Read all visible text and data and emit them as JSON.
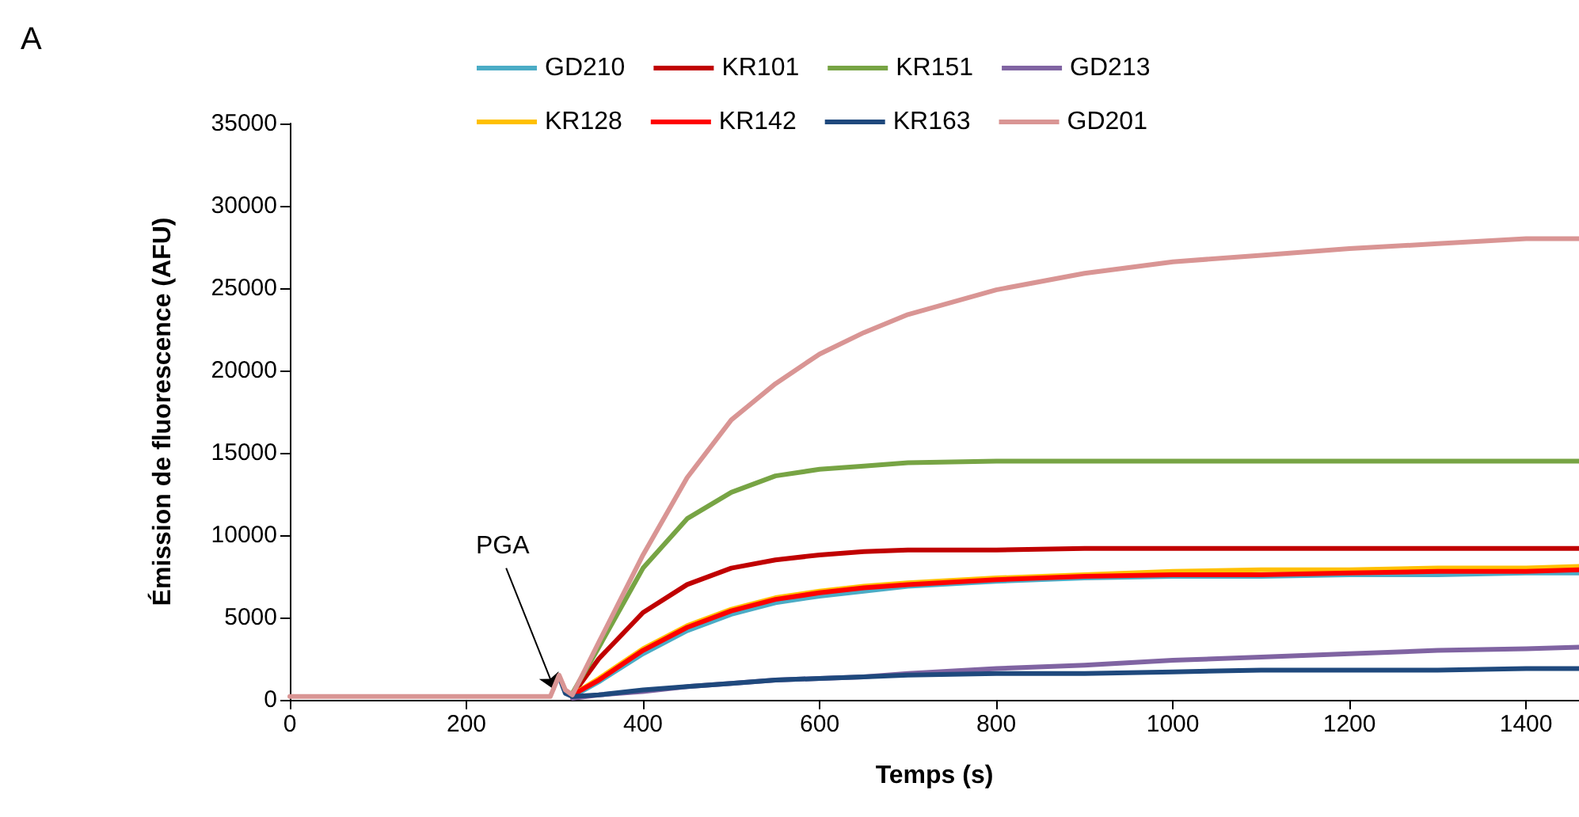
{
  "chart_data": {
    "type": "line",
    "xlabel": "Temps (s)",
    "ylabel": "Émission de fluorescence (AFU)",
    "xlim": [
      0,
      1460
    ],
    "xticks": [
      0,
      200,
      400,
      600,
      800,
      1000,
      1200,
      1400
    ],
    "ylim": [
      0,
      35000
    ],
    "yticks": [
      0,
      5000,
      10000,
      15000,
      20000,
      25000,
      30000,
      35000
    ],
    "grid": false,
    "legend": "top",
    "marker": "none",
    "line_style": "solid",
    "x": [
      0,
      295,
      305,
      312,
      320,
      350,
      400,
      450,
      500,
      550,
      600,
      650,
      700,
      800,
      900,
      1000,
      1100,
      1200,
      1300,
      1400,
      1460
    ],
    "annotations": [
      "A",
      {
        "text": "PGA",
        "x": 300,
        "y": 600
      }
    ],
    "series": [
      {
        "name": "GD210",
        "color": "#4bacc6",
        "values": [
          null,
          null,
          null,
          null,
          200,
          1100,
          2800,
          4200,
          5200,
          5900,
          6300,
          6600,
          6900,
          7200,
          7400,
          7500,
          7500,
          7600,
          7600,
          7700,
          7700
        ]
      },
      {
        "name": "KR101",
        "color": "#c00000",
        "values": [
          null,
          null,
          null,
          null,
          300,
          2500,
          5300,
          7000,
          8000,
          8500,
          8800,
          9000,
          9100,
          9100,
          9200,
          9200,
          9200,
          9200,
          9200,
          9200,
          9200
        ]
      },
      {
        "name": "KR151",
        "color": "#77a444",
        "values": [
          null,
          null,
          null,
          null,
          400,
          3200,
          8000,
          11000,
          12600,
          13600,
          14000,
          14200,
          14400,
          14500,
          14500,
          14500,
          14500,
          14500,
          14500,
          14500,
          14500
        ]
      },
      {
        "name": "GD213",
        "color": "#8064a2",
        "values": [
          null,
          null,
          null,
          null,
          100,
          300,
          500,
          800,
          1000,
          1200,
          1300,
          1400,
          1600,
          1900,
          2100,
          2400,
          2600,
          2800,
          3000,
          3100,
          3200
        ]
      },
      {
        "name": "KR128",
        "color": "#ffc000",
        "values": [
          null,
          null,
          null,
          null,
          300,
          1300,
          3100,
          4500,
          5500,
          6200,
          6600,
          6900,
          7100,
          7400,
          7600,
          7800,
          7900,
          7900,
          8000,
          8000,
          8100
        ]
      },
      {
        "name": "KR142",
        "color": "#ff0000",
        "values": [
          null,
          null,
          null,
          null,
          300,
          1200,
          3000,
          4400,
          5400,
          6100,
          6500,
          6800,
          7000,
          7300,
          7500,
          7600,
          7600,
          7700,
          7800,
          7800,
          7900
        ]
      },
      {
        "name": "KR163",
        "color": "#1f497d",
        "values": [
          null,
          null,
          1400,
          400,
          200,
          300,
          600,
          800,
          1000,
          1200,
          1300,
          1400,
          1500,
          1600,
          1600,
          1700,
          1800,
          1800,
          1800,
          1900,
          1900
        ]
      },
      {
        "name": "GD201",
        "color": "#d99594",
        "values": [
          200,
          200,
          1500,
          600,
          300,
          3500,
          8800,
          13500,
          17000,
          19200,
          21000,
          22300,
          23400,
          24900,
          25900,
          26600,
          27000,
          27400,
          27700,
          28000,
          28000
        ]
      }
    ]
  }
}
